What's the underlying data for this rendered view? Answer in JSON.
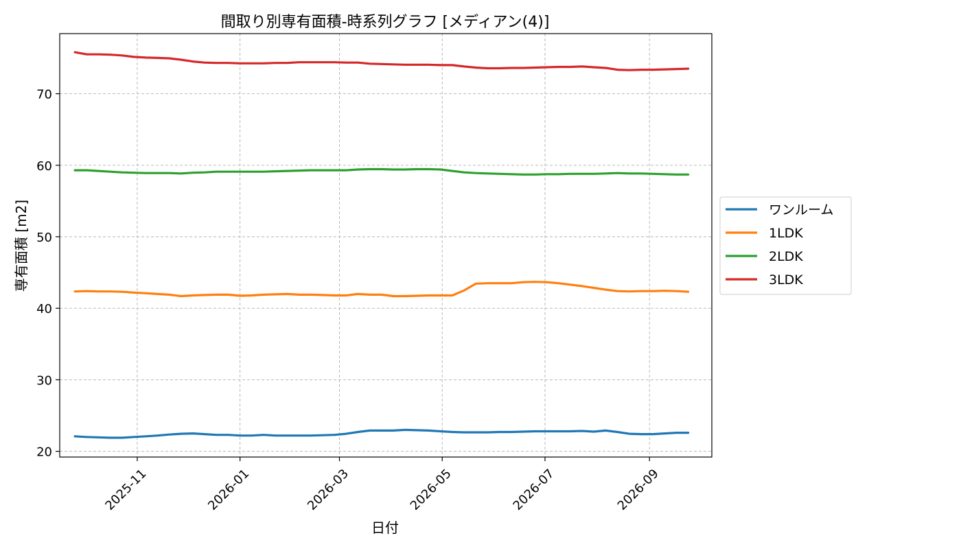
{
  "chart_data": {
    "type": "line",
    "title": "間取り別専有面積-時系列グラフ [メディアン(4)]",
    "xlabel": "日付",
    "ylabel": "専有面積 [m2]",
    "ylim": [
      19.2,
      78.4
    ],
    "xlim": [
      "2025-09-16",
      "2026-10-08"
    ],
    "grid": true,
    "legend_position": "right",
    "x_ticks": [
      "2025-11",
      "2026-01",
      "2026-03",
      "2026-05",
      "2026-07",
      "2026-09"
    ],
    "y_ticks": [
      20,
      30,
      40,
      50,
      60,
      70
    ],
    "x": [
      "2025-09-25",
      "2025-10-02",
      "2025-10-09",
      "2025-10-16",
      "2025-10-23",
      "2025-10-30",
      "2025-11-06",
      "2025-11-13",
      "2025-11-20",
      "2025-11-27",
      "2025-12-04",
      "2025-12-11",
      "2025-12-18",
      "2025-12-25",
      "2026-01-01",
      "2026-01-08",
      "2026-01-15",
      "2026-01-22",
      "2026-01-29",
      "2026-02-05",
      "2026-02-12",
      "2026-02-19",
      "2026-02-26",
      "2026-03-05",
      "2026-03-12",
      "2026-03-19",
      "2026-03-26",
      "2026-04-02",
      "2026-04-09",
      "2026-04-16",
      "2026-04-23",
      "2026-04-30",
      "2026-05-07",
      "2026-05-14",
      "2026-05-21",
      "2026-05-28",
      "2026-06-04",
      "2026-06-11",
      "2026-06-18",
      "2026-06-25",
      "2026-07-02",
      "2026-07-09",
      "2026-07-16",
      "2026-07-23",
      "2026-07-30",
      "2026-08-06",
      "2026-08-13",
      "2026-08-20",
      "2026-08-27",
      "2026-09-03",
      "2026-09-10",
      "2026-09-17",
      "2026-09-24"
    ],
    "series": [
      {
        "name": "ワンルーム",
        "color": "#1f77b4",
        "values": [
          22.1,
          22.0,
          21.95,
          21.9,
          21.9,
          22.0,
          22.1,
          22.2,
          22.35,
          22.45,
          22.5,
          22.4,
          22.3,
          22.3,
          22.2,
          22.2,
          22.3,
          22.2,
          22.2,
          22.2,
          22.2,
          22.25,
          22.3,
          22.45,
          22.7,
          22.9,
          22.9,
          22.9,
          23.0,
          22.95,
          22.9,
          22.8,
          22.7,
          22.65,
          22.65,
          22.65,
          22.7,
          22.7,
          22.75,
          22.8,
          22.8,
          22.8,
          22.8,
          22.85,
          22.75,
          22.9,
          22.7,
          22.45,
          22.4,
          22.4,
          22.5,
          22.6,
          22.6
        ]
      },
      {
        "name": "1LDK",
        "color": "#ff7f0e",
        "values": [
          42.35,
          42.4,
          42.35,
          42.35,
          42.3,
          42.2,
          42.1,
          42.0,
          41.9,
          41.7,
          41.8,
          41.85,
          41.9,
          41.9,
          41.75,
          41.8,
          41.9,
          41.95,
          42.0,
          41.9,
          41.9,
          41.85,
          41.8,
          41.8,
          42.0,
          41.9,
          41.9,
          41.7,
          41.7,
          41.75,
          41.8,
          41.8,
          41.8,
          42.5,
          43.45,
          43.5,
          43.5,
          43.5,
          43.65,
          43.7,
          43.65,
          43.5,
          43.3,
          43.1,
          42.85,
          42.6,
          42.4,
          42.35,
          42.4,
          42.4,
          42.45,
          42.4,
          42.3
        ]
      },
      {
        "name": "2LDK",
        "color": "#2ca02c",
        "values": [
          59.3,
          59.3,
          59.2,
          59.1,
          59.0,
          58.95,
          58.9,
          58.9,
          58.9,
          58.85,
          58.95,
          59.0,
          59.1,
          59.1,
          59.1,
          59.1,
          59.1,
          59.15,
          59.2,
          59.25,
          59.3,
          59.3,
          59.3,
          59.3,
          59.4,
          59.45,
          59.45,
          59.4,
          59.4,
          59.45,
          59.45,
          59.4,
          59.2,
          59.0,
          58.9,
          58.85,
          58.8,
          58.75,
          58.7,
          58.7,
          58.75,
          58.75,
          58.8,
          58.8,
          58.8,
          58.85,
          58.9,
          58.85,
          58.85,
          58.8,
          58.75,
          58.7,
          58.7
        ]
      },
      {
        "name": "3LDK",
        "color": "#d62728",
        "values": [
          75.8,
          75.5,
          75.5,
          75.45,
          75.35,
          75.15,
          75.05,
          75.0,
          74.95,
          74.75,
          74.5,
          74.35,
          74.3,
          74.3,
          74.25,
          74.25,
          74.25,
          74.3,
          74.3,
          74.4,
          74.4,
          74.4,
          74.4,
          74.35,
          74.35,
          74.2,
          74.15,
          74.1,
          74.05,
          74.05,
          74.05,
          74.0,
          74.0,
          73.8,
          73.65,
          73.55,
          73.55,
          73.6,
          73.6,
          73.65,
          73.7,
          73.75,
          73.75,
          73.8,
          73.7,
          73.6,
          73.35,
          73.3,
          73.35,
          73.35,
          73.4,
          73.45,
          73.5
        ]
      }
    ]
  }
}
